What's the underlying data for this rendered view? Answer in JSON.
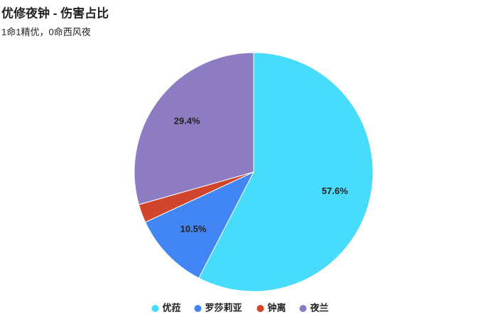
{
  "chart_data": {
    "type": "pie",
    "title": "优修夜钟 - 伤害占比",
    "subtitle": "1命1精优，0命西风夜",
    "categories": [
      "优菈",
      "罗莎莉亚",
      "钟离",
      "夜兰"
    ],
    "values": [
      57.6,
      10.5,
      2.5,
      29.4
    ],
    "value_labels": [
      "57.6%",
      "10.5%",
      null,
      "29.4%"
    ],
    "colors": [
      "#47dcfb",
      "#4285f4",
      "#d2452d",
      "#8e7cc3"
    ],
    "legend": "bottom"
  }
}
